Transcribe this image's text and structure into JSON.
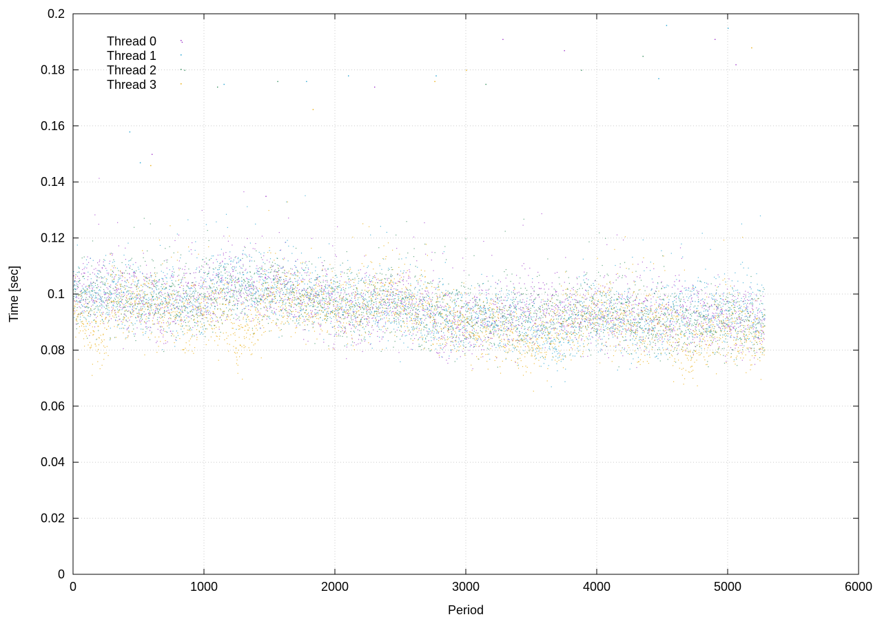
{
  "chart_data": {
    "type": "scatter",
    "title": "",
    "xlabel": "Period",
    "ylabel": "Time [sec]",
    "xlim": [
      0,
      6000
    ],
    "ylim": [
      0,
      0.2
    ],
    "x_ticks": [
      0,
      1000,
      2000,
      3000,
      4000,
      5000,
      6000
    ],
    "y_ticks": [
      0,
      0.02,
      0.04,
      0.06,
      0.08,
      0.1,
      0.12,
      0.14,
      0.16,
      0.18,
      0.2
    ],
    "grid": true,
    "legend_position": "top-left",
    "x_range_of_data": [
      0,
      5280
    ],
    "series": [
      {
        "name": "Thread 0",
        "color": "#9b30c8",
        "trend": [
          [
            0,
            0.1
          ],
          [
            300,
            0.101
          ],
          [
            600,
            0.097
          ],
          [
            700,
            0.093
          ],
          [
            1000,
            0.101
          ],
          [
            1300,
            0.104
          ],
          [
            1600,
            0.102
          ],
          [
            1900,
            0.099
          ],
          [
            2100,
            0.093
          ],
          [
            2400,
            0.097
          ],
          [
            2700,
            0.095
          ],
          [
            2900,
            0.088
          ],
          [
            3200,
            0.092
          ],
          [
            3600,
            0.094
          ],
          [
            4000,
            0.093
          ],
          [
            4300,
            0.092
          ],
          [
            4700,
            0.093
          ],
          [
            5000,
            0.092
          ],
          [
            5280,
            0.091
          ]
        ],
        "outliers": [
          [
            830,
            0.19
          ],
          [
            600,
            0.15
          ],
          [
            1470,
            0.135
          ],
          [
            3280,
            0.191
          ],
          [
            3750,
            0.187
          ],
          [
            4900,
            0.191
          ],
          [
            5060,
            0.182
          ],
          [
            2300,
            0.174
          ]
        ]
      },
      {
        "name": "Thread 1",
        "color": "#1a9fd0",
        "trend": [
          [
            0,
            0.102
          ],
          [
            300,
            0.1
          ],
          [
            600,
            0.098
          ],
          [
            900,
            0.096
          ],
          [
            1100,
            0.105
          ],
          [
            1400,
            0.103
          ],
          [
            1700,
            0.101
          ],
          [
            2000,
            0.098
          ],
          [
            2300,
            0.096
          ],
          [
            2600,
            0.093
          ],
          [
            2900,
            0.091
          ],
          [
            3200,
            0.093
          ],
          [
            3500,
            0.09
          ],
          [
            3700,
            0.082
          ],
          [
            3900,
            0.094
          ],
          [
            4300,
            0.088
          ],
          [
            4600,
            0.094
          ],
          [
            5000,
            0.094
          ],
          [
            5280,
            0.093
          ]
        ],
        "outliers": [
          [
            430,
            0.158
          ],
          [
            510,
            0.147
          ],
          [
            1150,
            0.175
          ],
          [
            1780,
            0.176
          ],
          [
            2100,
            0.178
          ],
          [
            2770,
            0.178
          ],
          [
            4530,
            0.196
          ],
          [
            5000,
            0.195
          ],
          [
            4470,
            0.177
          ]
        ]
      },
      {
        "name": "Thread 2",
        "color": "#2e8b57",
        "trend": [
          [
            0,
            0.099
          ],
          [
            300,
            0.1
          ],
          [
            600,
            0.098
          ],
          [
            900,
            0.097
          ],
          [
            1200,
            0.102
          ],
          [
            1500,
            0.102
          ],
          [
            1800,
            0.1
          ],
          [
            2100,
            0.096
          ],
          [
            2400,
            0.097
          ],
          [
            2700,
            0.094
          ],
          [
            3000,
            0.092
          ],
          [
            3300,
            0.091
          ],
          [
            3600,
            0.093
          ],
          [
            3900,
            0.094
          ],
          [
            4200,
            0.092
          ],
          [
            4500,
            0.09
          ],
          [
            4800,
            0.09
          ],
          [
            5100,
            0.091
          ],
          [
            5280,
            0.09
          ]
        ],
        "outliers": [
          [
            850,
            0.18
          ],
          [
            1100,
            0.174
          ],
          [
            3150,
            0.175
          ],
          [
            3880,
            0.18
          ],
          [
            4350,
            0.185
          ],
          [
            1560,
            0.176
          ]
        ]
      },
      {
        "name": "Thread 3",
        "color": "#e8a800",
        "trend": [
          [
            0,
            0.096
          ],
          [
            200,
            0.084
          ],
          [
            300,
            0.098
          ],
          [
            600,
            0.095
          ],
          [
            900,
            0.093
          ],
          [
            1200,
            0.093
          ],
          [
            1250,
            0.082
          ],
          [
            1500,
            0.099
          ],
          [
            1800,
            0.097
          ],
          [
            2100,
            0.095
          ],
          [
            2400,
            0.099
          ],
          [
            2700,
            0.094
          ],
          [
            3000,
            0.089
          ],
          [
            3300,
            0.088
          ],
          [
            3500,
            0.082
          ],
          [
            3700,
            0.088
          ],
          [
            4000,
            0.093
          ],
          [
            4300,
            0.089
          ],
          [
            4500,
            0.09
          ],
          [
            4700,
            0.079
          ],
          [
            4900,
            0.089
          ],
          [
            5200,
            0.084
          ],
          [
            5280,
            0.085
          ]
        ],
        "outliers": [
          [
            590,
            0.146
          ],
          [
            1830,
            0.166
          ],
          [
            2760,
            0.176
          ],
          [
            5180,
            0.188
          ],
          [
            3000,
            0.18
          ]
        ]
      }
    ]
  }
}
